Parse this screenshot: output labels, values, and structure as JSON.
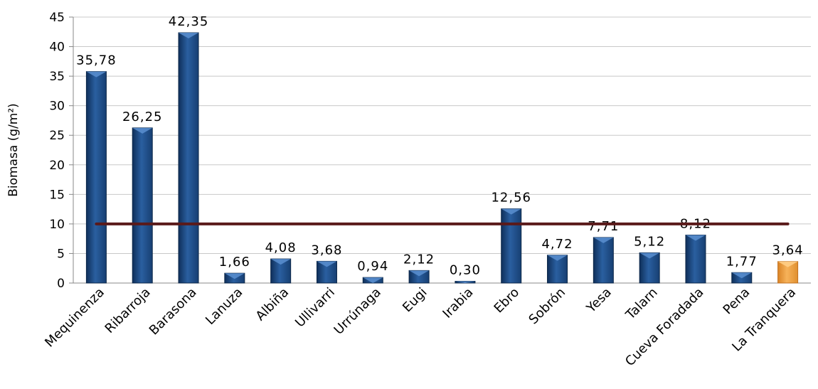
{
  "chart_data": {
    "type": "bar",
    "ylabel": "Biomasa (g/m²)",
    "ylim": [
      0,
      45
    ],
    "ytick_step": 5,
    "ytick_labels": [
      "0",
      "5",
      "10",
      "15",
      "20",
      "25",
      "30",
      "35",
      "40",
      "45"
    ],
    "grid": true,
    "categories": [
      "Mequinenza",
      "Ribarroja",
      "Barasona",
      "Lanuza",
      "Albiña",
      "Ullivarri",
      "Urrúnaga",
      "Eugi",
      "Irabia",
      "Ebro",
      "Sobrón",
      "Yesa",
      "Talarn",
      "Cueva Foradada",
      "Pena",
      "La Tranquera"
    ],
    "values": [
      35.78,
      26.25,
      42.35,
      1.66,
      4.08,
      3.68,
      0.94,
      2.12,
      0.3,
      12.56,
      4.72,
      7.71,
      5.12,
      8.12,
      1.77,
      3.64
    ],
    "data_labels": [
      "35,78",
      "26,25",
      "42,35",
      "1,66",
      "4,08",
      "3,68",
      "0,94",
      "2,12",
      "0,30",
      "12,56",
      "4,72",
      "7,71",
      "5,12",
      "8,12",
      "1,77",
      "3,64"
    ],
    "highlight_category": "La Tranquera",
    "reference_line": 10,
    "colors": {
      "bar": "#1f4e87",
      "bar_highlight": "#f0a040",
      "reference_line": "#5a1a1a",
      "grid": "#c8c8c8"
    }
  }
}
